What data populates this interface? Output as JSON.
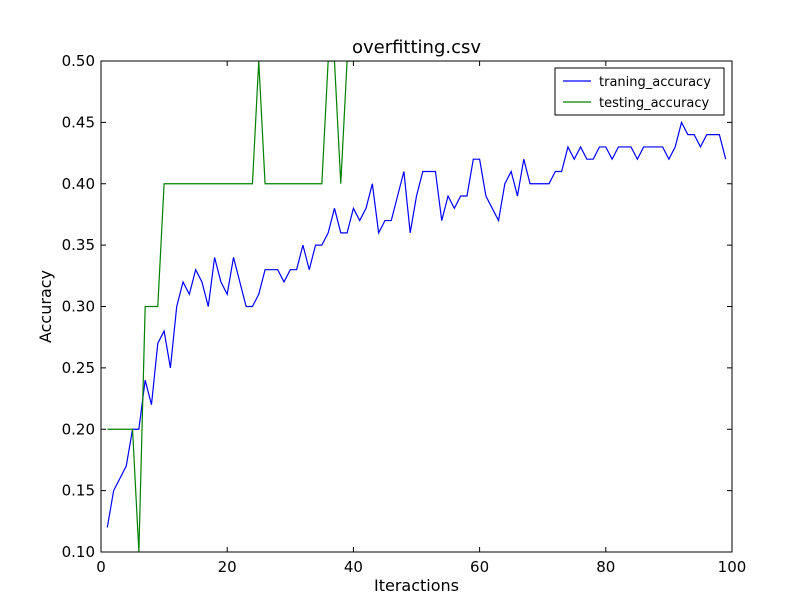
{
  "chart_data": {
    "type": "line",
    "title": "overfitting.csv",
    "xlabel": "Iteractions",
    "ylabel": "Accuracy",
    "xlim": [
      0,
      100
    ],
    "ylim": [
      0.1,
      0.5
    ],
    "xticks": [
      0,
      20,
      40,
      60,
      80,
      100
    ],
    "xtick_labels": [
      "0",
      "20",
      "40",
      "60",
      "80",
      "100"
    ],
    "yticks": [
      0.1,
      0.15,
      0.2,
      0.25,
      0.3,
      0.35,
      0.4,
      0.45,
      0.5
    ],
    "ytick_labels": [
      "0.10",
      "0.15",
      "0.20",
      "0.25",
      "0.30",
      "0.35",
      "0.40",
      "0.45",
      "0.50"
    ],
    "grid": false,
    "legend_position": "top-right",
    "series": [
      {
        "name": "traning_accuracy",
        "color": "#0000ff",
        "x": [
          1,
          2,
          3,
          4,
          5,
          6,
          7,
          8,
          9,
          10,
          11,
          12,
          13,
          14,
          15,
          16,
          17,
          18,
          19,
          20,
          21,
          22,
          23,
          24,
          25,
          26,
          27,
          28,
          29,
          30,
          31,
          32,
          33,
          34,
          35,
          36,
          37,
          38,
          39,
          40,
          41,
          42,
          43,
          44,
          45,
          46,
          47,
          48,
          49,
          50,
          51,
          52,
          53,
          54,
          55,
          56,
          57,
          58,
          59,
          60,
          61,
          62,
          63,
          64,
          65,
          66,
          67,
          68,
          69,
          70,
          71,
          72,
          73,
          74,
          75,
          76,
          77,
          78,
          79,
          80,
          81,
          82,
          83,
          84,
          85,
          86,
          87,
          88,
          89,
          90,
          91,
          92,
          93,
          94,
          95,
          96,
          97,
          98,
          99
        ],
        "y": [
          0.12,
          0.15,
          0.16,
          0.17,
          0.2,
          0.2,
          0.24,
          0.22,
          0.27,
          0.28,
          0.25,
          0.3,
          0.32,
          0.31,
          0.33,
          0.32,
          0.3,
          0.34,
          0.32,
          0.31,
          0.34,
          0.32,
          0.3,
          0.3,
          0.31,
          0.33,
          0.33,
          0.33,
          0.32,
          0.33,
          0.33,
          0.35,
          0.33,
          0.35,
          0.35,
          0.36,
          0.38,
          0.36,
          0.36,
          0.38,
          0.37,
          0.38,
          0.4,
          0.36,
          0.37,
          0.37,
          0.39,
          0.41,
          0.36,
          0.39,
          0.41,
          0.41,
          0.41,
          0.37,
          0.39,
          0.38,
          0.39,
          0.39,
          0.42,
          0.42,
          0.39,
          0.38,
          0.37,
          0.4,
          0.41,
          0.39,
          0.42,
          0.4,
          0.4,
          0.4,
          0.4,
          0.41,
          0.41,
          0.43,
          0.42,
          0.43,
          0.42,
          0.42,
          0.43,
          0.43,
          0.42,
          0.43,
          0.43,
          0.43,
          0.42,
          0.43,
          0.43,
          0.43,
          0.43,
          0.42,
          0.43,
          0.45,
          0.44,
          0.44,
          0.43,
          0.44,
          0.44,
          0.44,
          0.42
        ]
      },
      {
        "name": "testing_accuracy",
        "color": "#008000",
        "x": [
          1,
          5,
          6,
          7,
          8,
          9,
          10,
          12,
          15,
          20,
          24,
          25,
          26,
          30,
          35,
          36,
          37,
          38,
          39,
          40,
          41
        ],
        "y": [
          0.2,
          0.2,
          0.1,
          0.3,
          0.3,
          0.3,
          0.4,
          0.4,
          0.4,
          0.4,
          0.4,
          0.5,
          0.4,
          0.4,
          0.4,
          0.5,
          0.5,
          0.4,
          0.5,
          0.5,
          0.5
        ]
      }
    ]
  }
}
